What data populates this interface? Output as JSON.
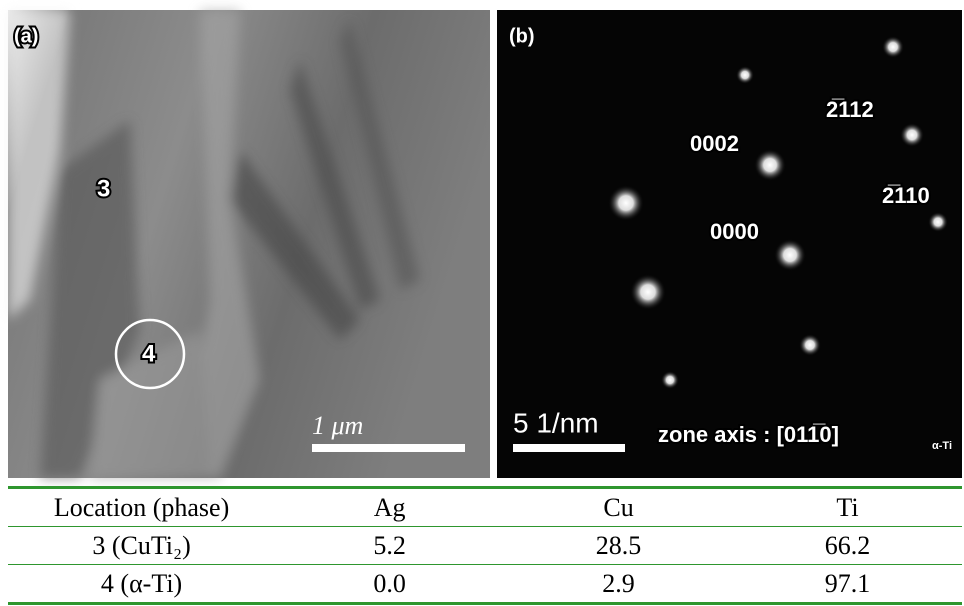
{
  "panel_a": {
    "label": "(a)",
    "marker_3": "3",
    "marker_4": "4",
    "scale_bar": "1 μm"
  },
  "panel_b": {
    "label": "(b)",
    "spots": [
      "0002",
      "0000",
      "2̅112",
      "2̅110"
    ],
    "scale_bar": "5 1/nm",
    "zone_axis": "zone axis : [011̅0]",
    "zone_axis_sub": "α-Ti"
  },
  "table": {
    "header": [
      "Location (phase)",
      "Ag",
      "Cu",
      "Ti"
    ],
    "rows": [
      [
        "3 (CuTi₂)",
        "5.2",
        "28.5",
        "66.2"
      ],
      [
        "4 (α-Ti)",
        "0.0",
        "2.9",
        "97.1"
      ]
    ]
  }
}
